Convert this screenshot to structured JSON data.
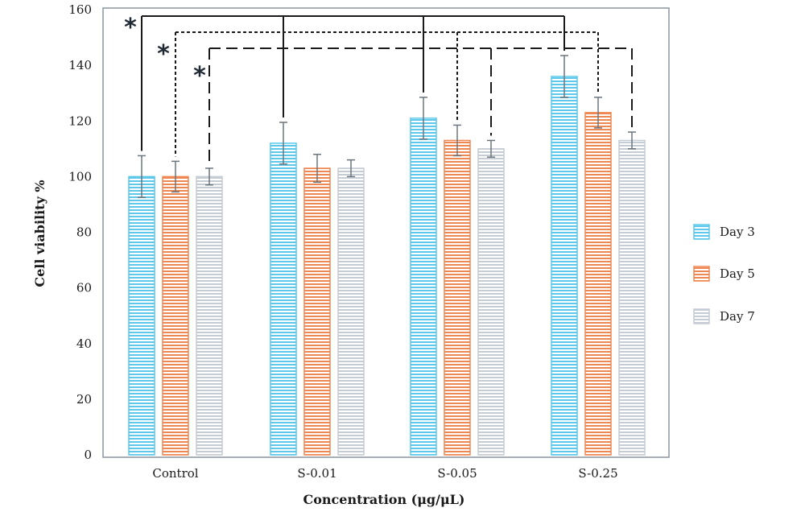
{
  "chart_data": {
    "type": "bar",
    "title": "",
    "xlabel": "Concentration (μg/μL)",
    "ylabel": "Cell viability %",
    "ylim": [
      0,
      160
    ],
    "yticks": [
      0,
      20,
      40,
      60,
      80,
      100,
      120,
      140,
      160
    ],
    "categories": [
      "Control",
      "S-0.01",
      "S-0.05",
      "S-0.25"
    ],
    "series": [
      {
        "name": "Day 3",
        "color": "#5bc8ec",
        "values": [
          100,
          112,
          121,
          136
        ],
        "errors": [
          7.5,
          7.5,
          7.5,
          7.5
        ]
      },
      {
        "name": "Day 5",
        "color": "#ef8752",
        "values": [
          100,
          103,
          113,
          123
        ],
        "errors": [
          5.5,
          5,
          5.5,
          5.5
        ]
      },
      {
        "name": "Day 7",
        "color": "#c6ccd3",
        "values": [
          100,
          103,
          110,
          113
        ],
        "errors": [
          3,
          3,
          3,
          3
        ]
      }
    ],
    "legend_position": "right",
    "grid": false,
    "significance": {
      "marker": "*",
      "comparisons": [
        {
          "series": "Day 3",
          "from": "Control",
          "to": [
            "S-0.01",
            "S-0.05",
            "S-0.25"
          ],
          "style": "solid"
        },
        {
          "series": "Day 5",
          "from": "Control",
          "to": [
            "S-0.05",
            "S-0.25"
          ],
          "style": "dotted"
        },
        {
          "series": "Day 7",
          "from": "Control",
          "to": [
            "S-0.05",
            "S-0.25"
          ],
          "style": "dashed"
        }
      ]
    }
  }
}
